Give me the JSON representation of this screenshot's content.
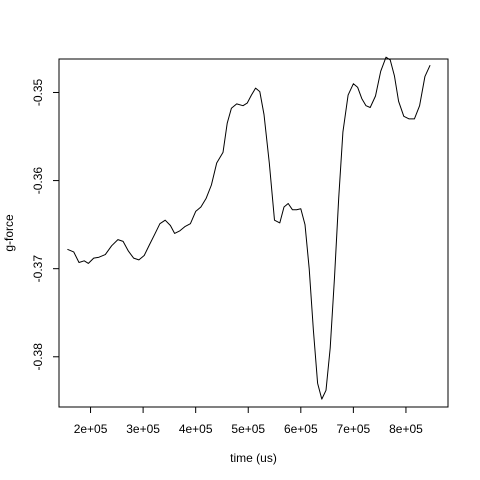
{
  "chart_data": {
    "type": "line",
    "xlabel": "time (us)",
    "ylabel": "g-force",
    "xlim": [
      140000,
      880000
    ],
    "ylim": [
      -0.3857,
      -0.3462
    ],
    "grid": false,
    "legend": "none",
    "x_ticks": [
      {
        "value": 200000,
        "label": "2e+05"
      },
      {
        "value": 300000,
        "label": "3e+05"
      },
      {
        "value": 400000,
        "label": "4e+05"
      },
      {
        "value": 500000,
        "label": "5e+05"
      },
      {
        "value": 600000,
        "label": "6e+05"
      },
      {
        "value": 700000,
        "label": "7e+05"
      },
      {
        "value": 800000,
        "label": "8e+05"
      }
    ],
    "y_ticks": [
      {
        "value": -0.38,
        "label": "-0.38"
      },
      {
        "value": -0.37,
        "label": "-0.37"
      },
      {
        "value": -0.36,
        "label": "-0.36"
      },
      {
        "value": -0.35,
        "label": "-0.35"
      }
    ],
    "series": [
      {
        "line_color": "#000000",
        "points": [
          [
            156000,
            -0.3678
          ],
          [
            168000,
            -0.3681
          ],
          [
            178000,
            -0.3693
          ],
          [
            188000,
            -0.3691
          ],
          [
            196000,
            -0.3694
          ],
          [
            206000,
            -0.3688
          ],
          [
            216000,
            -0.3687
          ],
          [
            228000,
            -0.3684
          ],
          [
            240000,
            -0.3674
          ],
          [
            252000,
            -0.3667
          ],
          [
            262000,
            -0.3669
          ],
          [
            272000,
            -0.368
          ],
          [
            282000,
            -0.3688
          ],
          [
            292000,
            -0.369
          ],
          [
            302000,
            -0.3685
          ],
          [
            312000,
            -0.3673
          ],
          [
            322000,
            -0.3661
          ],
          [
            332000,
            -0.3649
          ],
          [
            342000,
            -0.3645
          ],
          [
            352000,
            -0.3651
          ],
          [
            360000,
            -0.366
          ],
          [
            370000,
            -0.3657
          ],
          [
            380000,
            -0.3652
          ],
          [
            390000,
            -0.3649
          ],
          [
            400000,
            -0.3635
          ],
          [
            410000,
            -0.363
          ],
          [
            420000,
            -0.362
          ],
          [
            430000,
            -0.3605
          ],
          [
            440000,
            -0.358
          ],
          [
            452000,
            -0.3568
          ],
          [
            460000,
            -0.3535
          ],
          [
            468000,
            -0.3518
          ],
          [
            478000,
            -0.3513
          ],
          [
            490000,
            -0.3515
          ],
          [
            498000,
            -0.3512
          ],
          [
            506000,
            -0.3503
          ],
          [
            514000,
            -0.3495
          ],
          [
            522000,
            -0.3499
          ],
          [
            530000,
            -0.3525
          ],
          [
            540000,
            -0.358
          ],
          [
            550000,
            -0.3645
          ],
          [
            560000,
            -0.3648
          ],
          [
            568000,
            -0.363
          ],
          [
            576000,
            -0.3626
          ],
          [
            584000,
            -0.3633
          ],
          [
            592000,
            -0.3633
          ],
          [
            600000,
            -0.3632
          ],
          [
            608000,
            -0.365
          ],
          [
            616000,
            -0.37
          ],
          [
            624000,
            -0.377
          ],
          [
            632000,
            -0.383
          ],
          [
            640000,
            -0.3848
          ],
          [
            648000,
            -0.3838
          ],
          [
            656000,
            -0.379
          ],
          [
            664000,
            -0.371
          ],
          [
            672000,
            -0.362
          ],
          [
            680000,
            -0.3545
          ],
          [
            690000,
            -0.3503
          ],
          [
            700000,
            -0.349
          ],
          [
            708000,
            -0.3494
          ],
          [
            716000,
            -0.3507
          ],
          [
            724000,
            -0.3515
          ],
          [
            732000,
            -0.3517
          ],
          [
            742000,
            -0.3504
          ],
          [
            752000,
            -0.3476
          ],
          [
            762000,
            -0.346
          ],
          [
            770000,
            -0.3463
          ],
          [
            778000,
            -0.3481
          ],
          [
            786000,
            -0.351
          ],
          [
            796000,
            -0.3527
          ],
          [
            806000,
            -0.353
          ],
          [
            816000,
            -0.353
          ],
          [
            826000,
            -0.3515
          ],
          [
            836000,
            -0.3482
          ],
          [
            846000,
            -0.3469
          ]
        ]
      }
    ]
  }
}
